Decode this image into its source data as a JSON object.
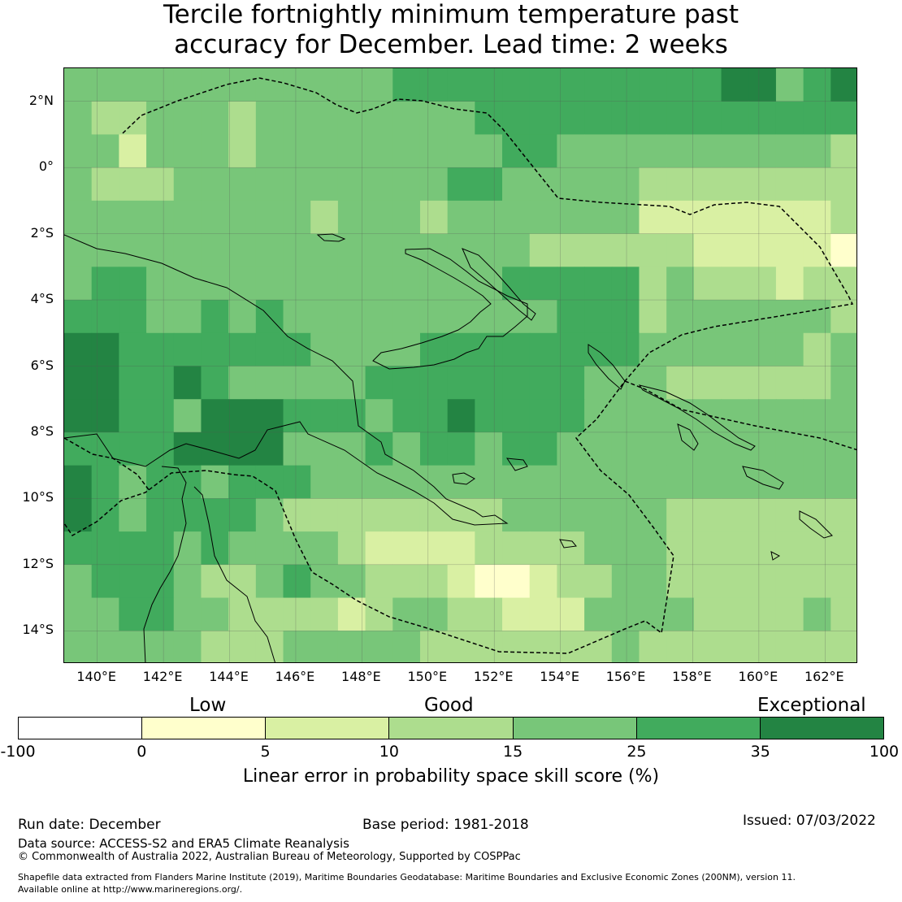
{
  "title": {
    "line1": "Tercile fortnightly minimum temperature past",
    "line2": "accuracy for December. Lead time: 2 weeks"
  },
  "map": {
    "lat_labels": [
      "2°N",
      "0°",
      "2°S",
      "4°S",
      "6°S",
      "8°S",
      "10°S",
      "12°S",
      "14°S"
    ],
    "lon_labels": [
      "140°E",
      "142°E",
      "144°E",
      "146°E",
      "148°E",
      "150°E",
      "152°E",
      "154°E",
      "156°E",
      "158°E",
      "160°E",
      "162°E"
    ],
    "extent": {
      "lon_min": 139.0,
      "lon_max": 163.0,
      "lat_min": -15.0,
      "lat_max": 3.0
    },
    "cell_size_deg": 0.833,
    "colors": [
      "#ffffcc",
      "#d9f0a3",
      "#addd8e",
      "#78c679",
      "#41ab5d",
      "#238443"
    ]
  },
  "legend": {
    "category_low": "Low",
    "category_good": "Good",
    "category_exceptional": "Exceptional",
    "colors": [
      "#ffffff",
      "#ffffcc",
      "#d9f0a3",
      "#addd8e",
      "#78c679",
      "#41ab5d",
      "#238443"
    ],
    "ticks": [
      "-100",
      "0",
      "5",
      "10",
      "15",
      "25",
      "35",
      "100"
    ],
    "title": "Linear error in probability space skill score (%)"
  },
  "footer": {
    "run_date": "Run date: December",
    "base_period": "Base period: 1981-2018",
    "issued": "Issued: 07/03/2022",
    "data_source": "Data source: ACCESS-S2 and ERA5 Climate Reanalysis",
    "copyright": "© Commonwealth of Australia 2022, Australian Bureau of Meteorology, Supported by COSPPac",
    "shapefile_line1": "Shapefile data extracted from Flanders Marine Institute (2019), Maritime Boundaries Geodatabase: Maritime Boundaries and Exclusive Economic Zones (200NM), version 11.",
    "shapefile_line2": "Available online at http://www.marineregions.org/."
  }
}
